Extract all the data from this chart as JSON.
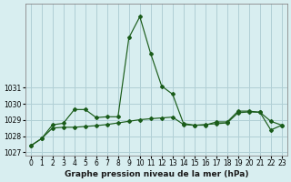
{
  "title": "Graphe pression niveau de la mer (hPa)",
  "background_color": "#d8eef0",
  "grid_color": "#b0cfd5",
  "line_color": "#1a5c1a",
  "xlim": [
    -0.5,
    23.5
  ],
  "ylim": [
    1026.8,
    1036.2
  ],
  "yticks": [
    1027,
    1028,
    1029,
    1030,
    1031
  ],
  "xticks": [
    0,
    1,
    2,
    3,
    4,
    5,
    6,
    7,
    8,
    9,
    10,
    11,
    12,
    13,
    14,
    15,
    16,
    17,
    18,
    19,
    20,
    21,
    22,
    23
  ],
  "line1_x": [
    0,
    1,
    2,
    3,
    4,
    5,
    6,
    7,
    8,
    9,
    10,
    11,
    12,
    13,
    14,
    15,
    16,
    17,
    18,
    19,
    20,
    21,
    22,
    23
  ],
  "line1_y": [
    1027.4,
    1027.85,
    1028.7,
    1028.8,
    1029.65,
    1029.65,
    1029.15,
    1029.2,
    1029.2,
    1034.1,
    1035.4,
    1033.1,
    1031.1,
    1030.6,
    1028.78,
    1028.68,
    1028.68,
    1028.88,
    1028.88,
    1029.55,
    1029.55,
    1029.48,
    1028.38,
    1028.68
  ],
  "line2_x": [
    0,
    1,
    2,
    3,
    4,
    5,
    6,
    7,
    8,
    9,
    10,
    11,
    12,
    13,
    14,
    15,
    16,
    17,
    18,
    19,
    20,
    21,
    22,
    23
  ],
  "line2_y": [
    1027.4,
    1027.85,
    1028.5,
    1028.55,
    1028.55,
    1028.6,
    1028.65,
    1028.72,
    1028.82,
    1028.92,
    1029.02,
    1029.08,
    1029.13,
    1029.18,
    1028.72,
    1028.67,
    1028.72,
    1028.77,
    1028.82,
    1029.45,
    1029.5,
    1029.48,
    1028.92,
    1028.68
  ]
}
